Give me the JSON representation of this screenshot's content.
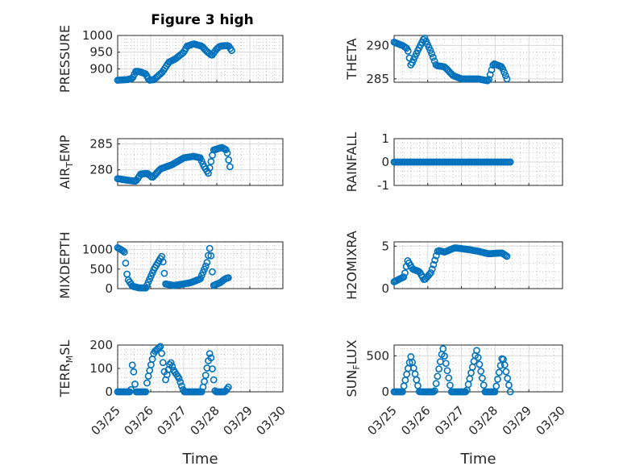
{
  "figure": {
    "title": "Figure 3 high"
  },
  "colors": {
    "marker": "#0072BD",
    "axis": "#262626",
    "grid": "#d9d9d9"
  },
  "x_tick_labels": [
    "03/25",
    "03/26",
    "03/27",
    "03/28",
    "03/29",
    "03/30"
  ],
  "chart_data": [
    {
      "type": "scatter",
      "id": "pressure",
      "ylabel": "PRESSURE",
      "title": "Figure 3 high",
      "xlabel": "",
      "x_range": [
        0,
        5
      ],
      "ylim": [
        860,
        1000
      ],
      "yticks": [
        900,
        950,
        1000
      ],
      "ytick_labels": [
        "900",
        "950",
        "1000"
      ],
      "grid": true,
      "minor_grid": true,
      "knots": [
        [
          0,
          866
        ],
        [
          0.3,
          868
        ],
        [
          0.45,
          872
        ],
        [
          0.55,
          893
        ],
        [
          0.65,
          892
        ],
        [
          0.85,
          885
        ],
        [
          0.95,
          866
        ],
        [
          1.1,
          868
        ],
        [
          1.35,
          890
        ],
        [
          1.55,
          920
        ],
        [
          1.75,
          930
        ],
        [
          2.0,
          950
        ],
        [
          2.1,
          968
        ],
        [
          2.3,
          975
        ],
        [
          2.55,
          968
        ],
        [
          2.7,
          952
        ],
        [
          2.85,
          940
        ],
        [
          3.0,
          960
        ],
        [
          3.1,
          968
        ],
        [
          3.35,
          970
        ],
        [
          3.45,
          955
        ]
      ],
      "range": [
        0,
        3.45
      ],
      "count": 83
    },
    {
      "type": "scatter",
      "id": "theta",
      "ylabel": "THETA",
      "xlabel": "",
      "x_range": [
        0,
        5
      ],
      "ylim": [
        284.5,
        291.5
      ],
      "yticks": [
        285,
        290
      ],
      "ytick_labels": [
        "285",
        "290"
      ],
      "grid": true,
      "minor_grid": true,
      "knots": [
        [
          0,
          290.5
        ],
        [
          0.25,
          290
        ],
        [
          0.4,
          289.5
        ],
        [
          0.5,
          287
        ],
        [
          0.7,
          289.2
        ],
        [
          0.9,
          291.2
        ],
        [
          1.1,
          289
        ],
        [
          1.25,
          287
        ],
        [
          1.5,
          286.8
        ],
        [
          1.75,
          285.5
        ],
        [
          2.0,
          285
        ],
        [
          2.5,
          285
        ],
        [
          2.8,
          284.7
        ],
        [
          2.95,
          287.3
        ],
        [
          3.2,
          286.8
        ],
        [
          3.35,
          285
        ]
      ],
      "range": [
        0,
        3.35
      ],
      "count": 82
    },
    {
      "type": "scatter",
      "id": "air_temp",
      "ylabel": "AIR_TEMP",
      "ylabel_parts": {
        "pre": "AIR",
        "sub": "T",
        "post": "EMP"
      },
      "xlabel": "",
      "x_range": [
        0,
        5
      ],
      "ylim": [
        277,
        286
      ],
      "yticks": [
        280,
        285
      ],
      "ytick_labels": [
        "280",
        "285"
      ],
      "grid": true,
      "minor_grid": true,
      "knots": [
        [
          0,
          278.3
        ],
        [
          0.3,
          278
        ],
        [
          0.55,
          277.8
        ],
        [
          0.7,
          279.2
        ],
        [
          0.9,
          279.3
        ],
        [
          1.05,
          278.5
        ],
        [
          1.3,
          280.2
        ],
        [
          1.65,
          281
        ],
        [
          2.0,
          282.3
        ],
        [
          2.3,
          282.6
        ],
        [
          2.5,
          282.3
        ],
        [
          2.6,
          280.8
        ],
        [
          2.75,
          279.3
        ],
        [
          2.9,
          283.8
        ],
        [
          3.15,
          284.3
        ],
        [
          3.3,
          283.8
        ],
        [
          3.4,
          280.6
        ]
      ],
      "range": [
        0,
        3.4
      ],
      "count": 84
    },
    {
      "type": "scatter",
      "id": "rainfall",
      "ylabel": "RAINFALL",
      "xlabel": "",
      "x_range": [
        0,
        5
      ],
      "ylim": [
        -1,
        1
      ],
      "yticks": [
        -1,
        0,
        1
      ],
      "ytick_labels": [
        "-1",
        "0",
        "1"
      ],
      "grid": true,
      "minor_grid": true,
      "knots": [
        [
          0,
          0
        ],
        [
          3.45,
          0
        ]
      ],
      "range": [
        0,
        3.45
      ],
      "count": 84
    },
    {
      "type": "scatter",
      "id": "mixdepth",
      "ylabel": "MIXDEPTH",
      "xlabel": "",
      "x_range": [
        0,
        5
      ],
      "ylim": [
        0,
        1200
      ],
      "yticks": [
        0,
        500,
        1000
      ],
      "ytick_labels": [
        "0",
        "500",
        "1000"
      ],
      "grid": true,
      "minor_grid": true,
      "knots": [
        [
          0,
          1050
        ],
        [
          0.2,
          950
        ],
        [
          0.3,
          250
        ],
        [
          0.45,
          60
        ],
        [
          0.65,
          20
        ],
        [
          0.85,
          15
        ],
        [
          1.1,
          500
        ],
        [
          1.35,
          850
        ],
        [
          1.45,
          120
        ],
        [
          1.7,
          80
        ],
        [
          2.0,
          120
        ],
        [
          2.2,
          150
        ],
        [
          2.5,
          250
        ],
        [
          2.7,
          650
        ],
        [
          2.8,
          1100
        ],
        [
          2.9,
          80
        ],
        [
          3.1,
          150
        ],
        [
          3.25,
          250
        ],
        [
          3.35,
          280
        ]
      ],
      "range": [
        0,
        3.35
      ],
      "count": 84
    },
    {
      "type": "scatter",
      "id": "h2omixra",
      "ylabel": "H2OMIXRA",
      "xlabel": "",
      "x_range": [
        0,
        5
      ],
      "ylim": [
        0,
        5.5
      ],
      "yticks": [
        0,
        5
      ],
      "ytick_labels": [
        "0",
        "5"
      ],
      "grid": true,
      "minor_grid": true,
      "knots": [
        [
          0,
          0.8
        ],
        [
          0.3,
          1.4
        ],
        [
          0.4,
          3.3
        ],
        [
          0.55,
          2.3
        ],
        [
          0.75,
          2.0
        ],
        [
          0.9,
          1.0
        ],
        [
          1.1,
          1.9
        ],
        [
          1.3,
          4.5
        ],
        [
          1.5,
          4.3
        ],
        [
          1.8,
          4.8
        ],
        [
          2.2,
          4.6
        ],
        [
          2.5,
          4.4
        ],
        [
          2.8,
          4.1
        ],
        [
          3.2,
          4.2
        ],
        [
          3.35,
          3.8
        ]
      ],
      "range": [
        0,
        3.35
      ],
      "count": 84
    },
    {
      "type": "scatter",
      "id": "terr_msl",
      "ylabel": "TERR_MSL",
      "ylabel_parts": {
        "pre": "TERR",
        "sub": "M",
        "post": "SL"
      },
      "xlabel": "Time",
      "x_range": [
        0,
        5
      ],
      "ylim": [
        0,
        200
      ],
      "yticks": [
        0,
        100,
        200
      ],
      "ytick_labels": [
        "0",
        "100",
        "200"
      ],
      "grid": true,
      "minor_grid": true,
      "knots": [
        [
          0,
          0
        ],
        [
          0.4,
          0
        ],
        [
          0.45,
          130
        ],
        [
          0.55,
          0
        ],
        [
          0.85,
          0
        ],
        [
          0.9,
          50
        ],
        [
          1.1,
          170
        ],
        [
          1.3,
          195
        ],
        [
          1.45,
          50
        ],
        [
          1.6,
          130
        ],
        [
          1.7,
          90
        ],
        [
          1.85,
          60
        ],
        [
          2.0,
          0
        ],
        [
          2.55,
          0
        ],
        [
          2.65,
          60
        ],
        [
          2.8,
          175
        ],
        [
          2.95,
          0
        ],
        [
          3.25,
          0
        ],
        [
          3.35,
          20
        ]
      ],
      "range": [
        0,
        3.35
      ],
      "count": 84
    },
    {
      "type": "scatter",
      "id": "sun_flux",
      "ylabel": "SUN_FLUX",
      "ylabel_parts": {
        "pre": "SUN",
        "sub": "F",
        "post": "LUX"
      },
      "xlabel": "Time",
      "x_range": [
        0,
        5
      ],
      "ylim": [
        0,
        650
      ],
      "yticks": [
        0,
        500
      ],
      "ytick_labels": [
        "0",
        "500"
      ],
      "grid": true,
      "minor_grid": true,
      "knots": [
        [
          0,
          0
        ],
        [
          0.25,
          0
        ],
        [
          0.5,
          490
        ],
        [
          0.75,
          0
        ],
        [
          1.2,
          0
        ],
        [
          1.45,
          610
        ],
        [
          1.7,
          0
        ],
        [
          2.15,
          0
        ],
        [
          2.45,
          580
        ],
        [
          2.7,
          0
        ],
        [
          3.0,
          0
        ],
        [
          3.2,
          460
        ],
        [
          3.25,
          450
        ],
        [
          3.45,
          0
        ]
      ],
      "range": [
        0,
        3.45
      ],
      "count": 84
    }
  ]
}
